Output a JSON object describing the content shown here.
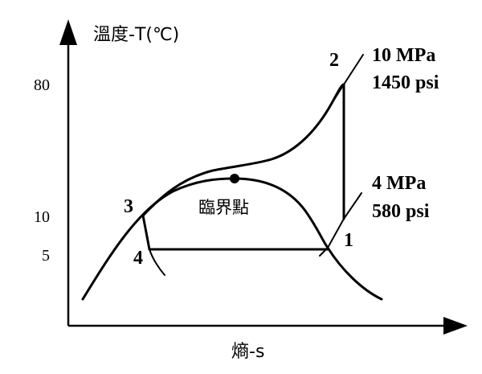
{
  "axes": {
    "y_label": "溫度-T(℃)",
    "x_label": "熵-s",
    "y_ticks": [
      "80",
      "10",
      "5"
    ]
  },
  "pressures": {
    "high": {
      "mpa": "10 MPa",
      "psi": "1450 psi"
    },
    "low": {
      "mpa": "4 MPa",
      "psi": "580 psi"
    }
  },
  "critical_point": {
    "label": "臨界點"
  },
  "state_points": [
    "1",
    "2",
    "3",
    "4"
  ],
  "colors": {
    "ink": "#000000",
    "background": "#ffffff"
  }
}
